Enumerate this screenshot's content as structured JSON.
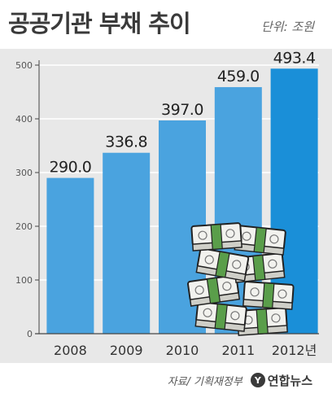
{
  "header": {
    "title": "공공기관 부채 추이",
    "unit": "단위: 조원"
  },
  "chart_data": {
    "type": "bar",
    "categories": [
      "2008",
      "2009",
      "2010",
      "2011",
      "2012년"
    ],
    "values": [
      290.0,
      336.8,
      397.0,
      459.0,
      493.4
    ],
    "value_labels": [
      "290.0",
      "336.8",
      "397.0",
      "459.0",
      "493.4"
    ],
    "title": "공공기관 부채 추이",
    "xlabel": "",
    "ylabel": "",
    "ylim": [
      0,
      500
    ],
    "yticks": [
      0,
      100,
      200,
      300,
      400,
      500
    ],
    "grid": true,
    "highlight_index": 4,
    "colors": {
      "bar": "#4aa3df",
      "highlight": "#1a8fd8",
      "panel": "#e8e8e8",
      "grid": "#ffffff",
      "axis": "#444444"
    }
  },
  "footer": {
    "source": "자료/ 기획재정부",
    "logo_mark": "Y",
    "logo_text": "연합뉴스"
  },
  "icons": {
    "money": "money-stack-icon"
  }
}
